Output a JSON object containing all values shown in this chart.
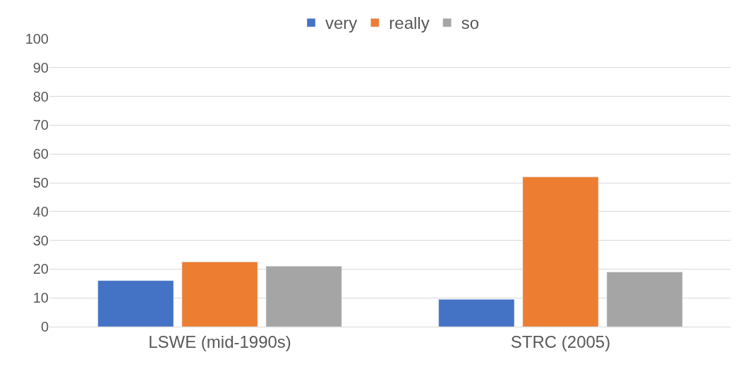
{
  "chart_data": {
    "type": "bar",
    "categories": [
      "LSWE (mid-1990s)",
      "STRC (2005)"
    ],
    "series": [
      {
        "name": "very",
        "color": "#4472c4",
        "values": [
          16,
          9.5
        ]
      },
      {
        "name": "really",
        "color": "#ed7d31",
        "values": [
          22.5,
          52
        ]
      },
      {
        "name": "so",
        "color": "#a5a5a5",
        "values": [
          21,
          19
        ]
      }
    ],
    "ylim": [
      0,
      100
    ],
    "yticks": [
      0,
      10,
      20,
      30,
      40,
      50,
      60,
      70,
      80,
      90,
      100
    ],
    "grid": "y",
    "legend": "top"
  }
}
